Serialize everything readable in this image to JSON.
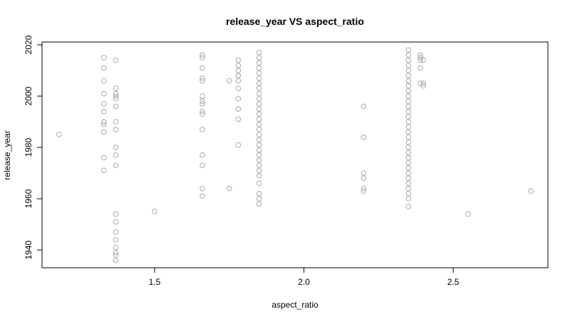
{
  "chart_data": {
    "type": "scatter",
    "title": "release_year VS aspect_ratio",
    "x_label": "aspect_ratio",
    "y_label": "release_year",
    "color": "#aaaaaa",
    "x": [
      1.18,
      1.33,
      1.33,
      1.33,
      1.33,
      1.33,
      1.33,
      1.33,
      1.33,
      1.33,
      1.33,
      1.33,
      1.37,
      1.37,
      1.37,
      1.37,
      1.37,
      1.37,
      1.37,
      1.37,
      1.37,
      1.37,
      1.37,
      1.37,
      1.37,
      1.37,
      1.37,
      1.37,
      1.37,
      1.37,
      1.37,
      1.5,
      1.66,
      1.66,
      1.66,
      1.66,
      1.66,
      1.66,
      1.66,
      1.66,
      1.66,
      1.66,
      1.66,
      1.66,
      1.66,
      1.66,
      1.66,
      1.75,
      1.75,
      1.78,
      1.78,
      1.78,
      1.78,
      1.78,
      1.78,
      1.78,
      1.78,
      1.78,
      1.78,
      1.85,
      1.85,
      1.85,
      1.85,
      1.85,
      1.85,
      1.85,
      1.85,
      1.85,
      1.85,
      1.85,
      1.85,
      1.85,
      1.85,
      1.85,
      1.85,
      1.85,
      1.85,
      1.85,
      1.85,
      1.85,
      1.85,
      1.85,
      1.85,
      1.85,
      1.85,
      1.85,
      1.85,
      1.85,
      2.2,
      2.2,
      2.2,
      2.2,
      2.2,
      2.2,
      2.35,
      2.35,
      2.35,
      2.35,
      2.35,
      2.35,
      2.35,
      2.35,
      2.35,
      2.35,
      2.35,
      2.35,
      2.35,
      2.35,
      2.35,
      2.35,
      2.35,
      2.35,
      2.35,
      2.35,
      2.35,
      2.35,
      2.35,
      2.35,
      2.35,
      2.35,
      2.35,
      2.35,
      2.35,
      2.35,
      2.35,
      2.39,
      2.39,
      2.39,
      2.39,
      2.39,
      2.4,
      2.4,
      2.4,
      2.55,
      2.76
    ],
    "values": [
      1985,
      2015,
      2011,
      2006,
      2001,
      1997,
      1994,
      1990,
      1989,
      1986,
      1976,
      1971,
      2014,
      2003,
      2001,
      2000,
      1999,
      1996,
      1990,
      1987,
      1980,
      1977,
      1973,
      1954,
      1951,
      1947,
      1944,
      1941,
      1939,
      1938,
      1936,
      1955,
      2016,
      2015,
      2011,
      2007,
      2006,
      2000,
      1998,
      1997,
      1994,
      1993,
      1987,
      1977,
      1973,
      1964,
      1961,
      2006,
      1964,
      2014,
      2012,
      2010,
      2008,
      2006,
      2003,
      1999,
      1995,
      1991,
      1981,
      2017,
      2015,
      2013,
      2011,
      2009,
      2007,
      2005,
      2003,
      2001,
      1999,
      1997,
      1995,
      1993,
      1991,
      1989,
      1987,
      1985,
      1983,
      1981,
      1979,
      1977,
      1975,
      1973,
      1971,
      1969,
      1966,
      1962,
      1960,
      1958,
      1996,
      1984,
      1970,
      1968,
      1964,
      1963,
      2018,
      2016,
      2014,
      2012,
      2010,
      2008,
      2006,
      2004,
      2002,
      2000,
      1998,
      1996,
      1994,
      1992,
      1990,
      1988,
      1986,
      1984,
      1982,
      1980,
      1978,
      1976,
      1974,
      1972,
      1970,
      1968,
      1966,
      1964,
      1962,
      1960,
      1957,
      2016,
      2015,
      2014,
      2011,
      2005,
      2014,
      2005,
      2004,
      1954,
      1963
    ],
    "xlim": [
      1.123,
      2.817
    ],
    "ylim": [
      1933.1,
      2021.1
    ],
    "xticks": [
      1.5,
      {
        "value": 2.0,
        "label": "2.0"
      },
      2.5
    ],
    "yticks": [
      1940,
      1960,
      1980,
      2000,
      2020
    ]
  }
}
